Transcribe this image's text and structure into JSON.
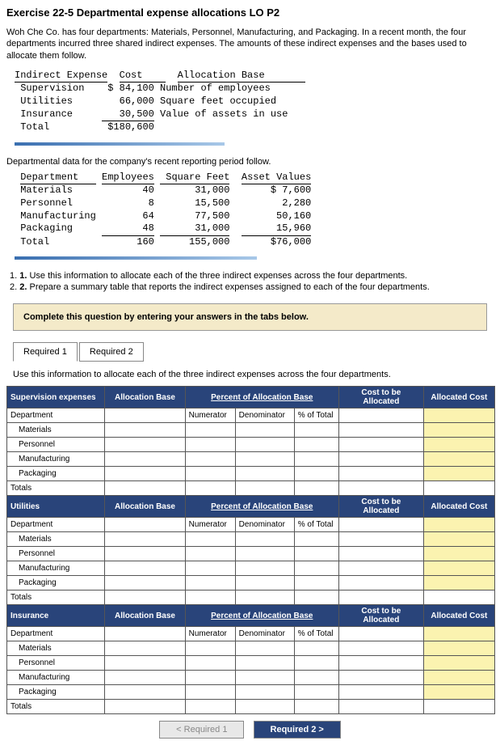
{
  "title": "Exercise 22-5 Departmental expense allocations LO P2",
  "intro": "Woh Che Co. has four departments: Materials, Personnel, Manufacturing, and Packaging. In a recent month, the four departments incurred three shared indirect expenses. The amounts of these indirect expenses and the bases used to allocate them follow.",
  "exp_table": {
    "h1": "Indirect Expense",
    "h2": "Cost",
    "h3": "Allocation Base",
    "rows": [
      {
        "n": "Supervision",
        "c": "$ 84,100",
        "b": "Number of employees"
      },
      {
        "n": "Utilities",
        "c": "66,000",
        "b": "Square feet occupied"
      },
      {
        "n": "Insurance",
        "c": "30,500",
        "b": "Value of assets in use"
      }
    ],
    "total_lbl": "Total",
    "total_val": "$180,600"
  },
  "dept_text": "Departmental data for the company's recent reporting period follow.",
  "dept_table": {
    "h": [
      "Department",
      "Employees",
      "Square Feet",
      "Asset Values"
    ],
    "rows": [
      {
        "d": "Materials",
        "e": "40",
        "s": "31,000",
        "a": "$ 7,600"
      },
      {
        "d": "Personnel",
        "e": "8",
        "s": "15,500",
        "a": "2,280"
      },
      {
        "d": "Manufacturing",
        "e": "64",
        "s": "77,500",
        "a": "50,160"
      },
      {
        "d": "Packaging",
        "e": "48",
        "s": "31,000",
        "a": "15,960"
      }
    ],
    "total": {
      "d": "Total",
      "e": "160",
      "s": "155,000",
      "a": "$76,000"
    }
  },
  "instr": [
    "Use this information to allocate each of the three indirect expenses across the four departments.",
    "Prepare a summary table that reports the indirect expenses assigned to each of the four departments."
  ],
  "beige": "Complete this question by entering your answers in the tabs below.",
  "tabs": {
    "r1": "Required 1",
    "r2": "Required 2"
  },
  "desc": "Use this information to allocate each of the three indirect expenses across the four departments.",
  "alloc": {
    "sections": [
      "Supervision expenses",
      "Utilities",
      "Insurance"
    ],
    "col_ab": "Allocation Base",
    "col_pab": "Percent of Allocation Base",
    "col_cta": "Cost to be Allocated",
    "col_ac": "Allocated Cost",
    "sub": [
      "Numerator",
      "Denominator",
      "% of Total"
    ],
    "dept_lbl": "Department",
    "depts": [
      "Materials",
      "Personnel",
      "Manufacturing",
      "Packaging"
    ],
    "totals": "Totals"
  },
  "nav": {
    "prev": "<  Required 1",
    "next": "Required 2  >"
  }
}
